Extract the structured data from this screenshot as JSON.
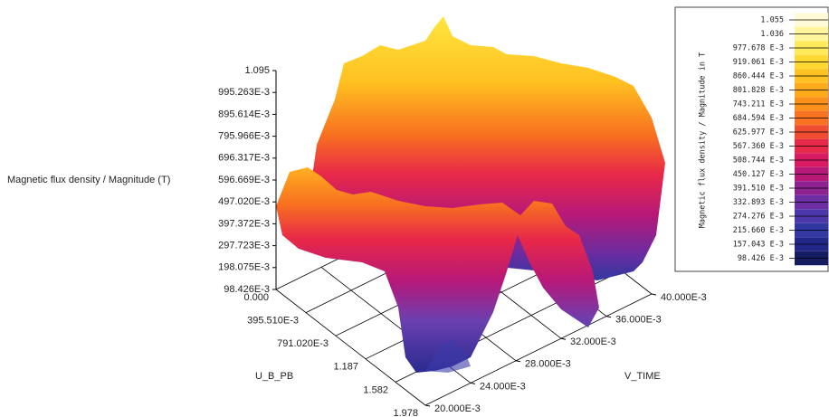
{
  "chart_data": {
    "type": "surface3d",
    "zlabel": "Magnetic flux density / Magnitude (T)",
    "xlabel": "U_B_PB",
    "ylabel": "V_TIME",
    "zlim": [
      0.098426,
      1.095
    ],
    "zticks": [
      1.095,
      {
        "value": 0.995263,
        "label": "995.263E-3"
      },
      {
        "value": 0.895614,
        "label": "895.614E-3"
      },
      {
        "value": 0.795966,
        "label": "795.966E-3"
      },
      {
        "value": 0.696317,
        "label": "696.317E-3"
      },
      {
        "value": 0.596669,
        "label": "596.669E-3"
      },
      {
        "value": 0.49702,
        "label": "497.020E-3"
      },
      {
        "value": 0.397372,
        "label": "397.372E-3"
      },
      {
        "value": 0.297723,
        "label": "297.723E-3"
      },
      {
        "value": 0.198075,
        "label": "198.075E-3"
      },
      {
        "value": 0.098426,
        "label": "98.426E-3"
      }
    ],
    "xlim": [
      0,
      1.978
    ],
    "xticks": [
      {
        "value": 0,
        "label": "0.000"
      },
      {
        "value": 0.39551,
        "label": "395.510E-3"
      },
      {
        "value": 0.79102,
        "label": "791.020E-3"
      },
      1.187,
      1.582,
      1.978
    ],
    "ylim": [
      0.02,
      0.04
    ],
    "yticks": [
      {
        "value": 0.02,
        "label": "20.000E-3"
      },
      {
        "value": 0.024,
        "label": "24.000E-3"
      },
      {
        "value": 0.028,
        "label": "28.000E-3"
      },
      {
        "value": 0.032,
        "label": "32.000E-3"
      },
      {
        "value": 0.036,
        "label": "36.000E-3"
      },
      {
        "value": 0.04,
        "label": "40.000E-3"
      }
    ],
    "colorbar": {
      "title": "Magnetic flux density / Magnitude in T",
      "levels": [
        {
          "value": 1.055,
          "label": "1.055",
          "color": "#fffbd6"
        },
        {
          "value": 1.036,
          "label": "1.036",
          "color": "#fff59c"
        },
        {
          "value": 0.977678,
          "label": "977.678 E-3",
          "color": "#ffea5c"
        },
        {
          "value": 0.919061,
          "label": "919.061 E-3",
          "color": "#ffd932"
        },
        {
          "value": 0.860444,
          "label": "860.444 E-3",
          "color": "#ffc222"
        },
        {
          "value": 0.801828,
          "label": "801.828 E-3",
          "color": "#ffaa1a"
        },
        {
          "value": 0.743211,
          "label": "743.211 E-3",
          "color": "#fc901a"
        },
        {
          "value": 0.684594,
          "label": "684.594 E-3",
          "color": "#f87222"
        },
        {
          "value": 0.625977,
          "label": "625.977 E-3",
          "color": "#f04c32"
        },
        {
          "value": 0.56736,
          "label": "567.360 E-3",
          "color": "#e82a4a"
        },
        {
          "value": 0.508744,
          "label": "508.744 E-3",
          "color": "#d81a62"
        },
        {
          "value": 0.450127,
          "label": "450.127 E-3",
          "color": "#b81a7a"
        },
        {
          "value": 0.39151,
          "label": "391.510 E-3",
          "color": "#8e2290"
        },
        {
          "value": 0.332893,
          "label": "332.893 E-3",
          "color": "#6c2ea2"
        },
        {
          "value": 0.274276,
          "label": "274.276 E-3",
          "color": "#4c38aa"
        },
        {
          "value": 0.21566,
          "label": "215.660 E-3",
          "color": "#3238a2"
        },
        {
          "value": 0.157043,
          "label": "157.043 E-3",
          "color": "#22288a"
        },
        {
          "value": 0.098426,
          "label": "98.426 E-3",
          "color": "#161c62"
        }
      ]
    }
  }
}
